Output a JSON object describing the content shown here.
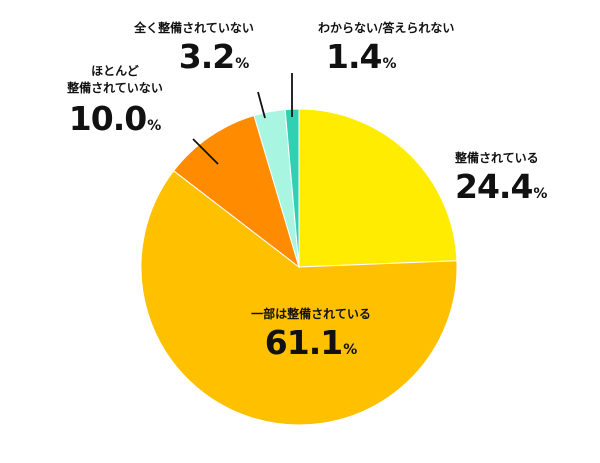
{
  "chart_data": {
    "type": "pie",
    "unit": "%",
    "slices": [
      {
        "label": "整備されている",
        "value": 24.4,
        "value_text": "24.4",
        "color": "#ffec00"
      },
      {
        "label": "一部は整備されている",
        "value": 61.1,
        "value_text": "61.1",
        "color": "#ffc000"
      },
      {
        "label": "ほとんど\n整備されていない",
        "value": 10.0,
        "value_text": "10.0",
        "color": "#ff8c00"
      },
      {
        "label": "全く整備されていない",
        "value": 3.2,
        "value_text": "3.2",
        "color": "#a8f5e2"
      },
      {
        "label": "わからない/答えられない",
        "value": 1.4,
        "value_text": "1.4",
        "color": "#2fd1b2"
      }
    ],
    "start": "12 o'clock",
    "direction": "clockwise"
  }
}
